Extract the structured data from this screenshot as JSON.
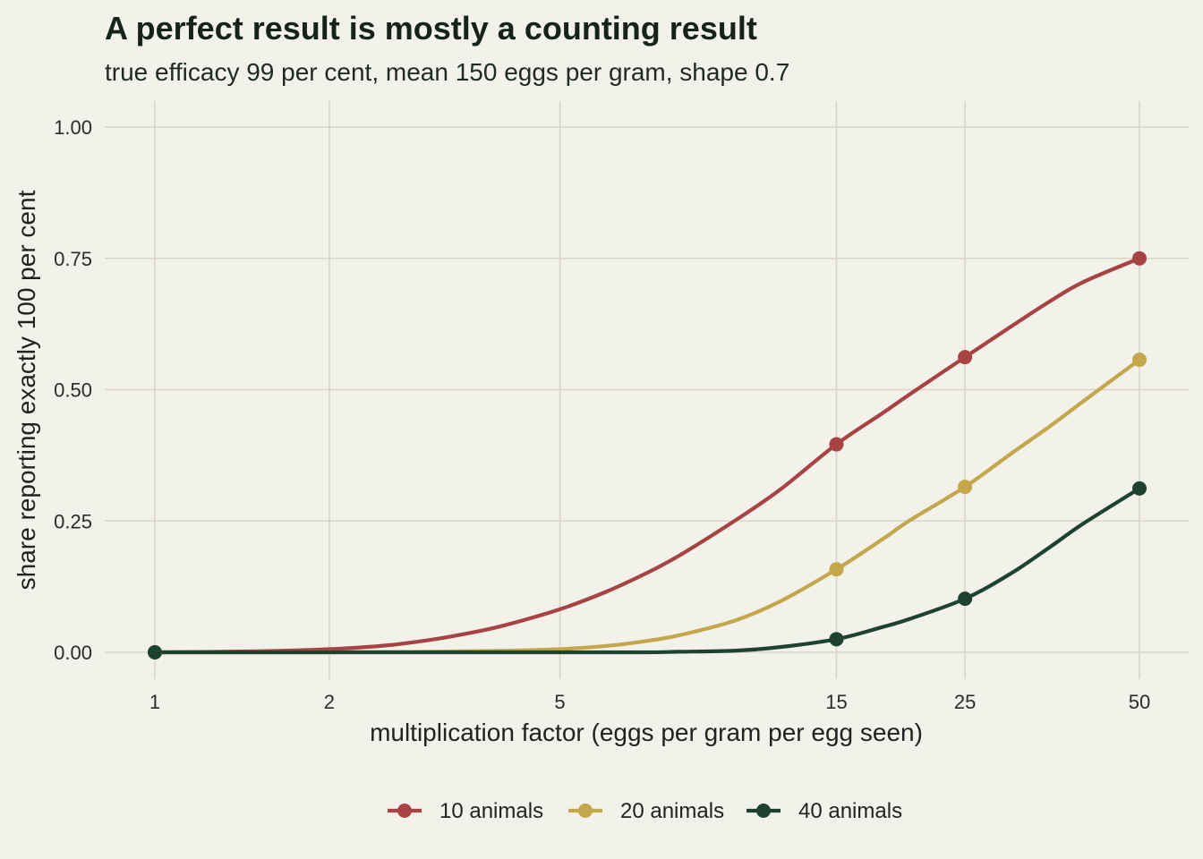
{
  "chart_data": {
    "type": "line",
    "title": "A perfect result is mostly a counting result",
    "subtitle": "true efficacy 99 per cent, mean 150 eggs per gram, shape 0.7",
    "xlabel": "multiplication factor (eggs per gram per egg seen)",
    "ylabel": "share reporting exactly 100 per cent",
    "x_scale": "log",
    "xlim": [
      0.85,
      60
    ],
    "ylim": [
      -0.05,
      1.05
    ],
    "x_ticks": [
      1,
      2,
      5,
      15,
      25,
      50
    ],
    "x_tick_labels": [
      "1",
      "2",
      "5",
      "15",
      "25",
      "50"
    ],
    "y_ticks": [
      0,
      0.25,
      0.5,
      0.75,
      1.0
    ],
    "y_tick_labels": [
      "0.00",
      "0.25",
      "0.50",
      "0.75",
      "1.00"
    ],
    "grid": true,
    "legend_position": "bottom",
    "series": [
      {
        "name": "10 animals",
        "color": "#a84343",
        "curve": {
          "x": [
            1,
            1.5,
            2,
            2.5,
            3,
            3.5,
            4,
            5,
            6,
            7,
            8,
            10,
            12,
            15,
            18,
            20,
            25,
            30,
            35,
            40,
            50
          ],
          "y": [
            0,
            0.002,
            0.006,
            0.013,
            0.024,
            0.037,
            0.051,
            0.082,
            0.115,
            0.149,
            0.183,
            0.25,
            0.31,
            0.396,
            0.455,
            0.49,
            0.562,
            0.62,
            0.668,
            0.705,
            0.75
          ]
        },
        "points": {
          "x": [
            1,
            15,
            25,
            50
          ],
          "y": [
            0,
            0.396,
            0.562,
            0.75
          ]
        }
      },
      {
        "name": "20 animals",
        "color": "#c4a74a",
        "curve": {
          "x": [
            1,
            2,
            3,
            4,
            5,
            6,
            7,
            8,
            10,
            12,
            15,
            18,
            20,
            25,
            30,
            35,
            40,
            50
          ],
          "y": [
            0,
            0,
            0.001,
            0.003,
            0.006,
            0.012,
            0.021,
            0.032,
            0.06,
            0.097,
            0.158,
            0.215,
            0.25,
            0.315,
            0.378,
            0.43,
            0.478,
            0.557
          ]
        },
        "points": {
          "x": [
            1,
            15,
            25,
            50
          ],
          "y": [
            0,
            0.158,
            0.315,
            0.557
          ]
        }
      },
      {
        "name": "40 animals",
        "color": "#1e4230",
        "curve": {
          "x": [
            1,
            5,
            7,
            8,
            10,
            12,
            15,
            18,
            20,
            25,
            30,
            35,
            40,
            50
          ],
          "y": [
            0,
            0,
            0,
            0.001,
            0.003,
            0.01,
            0.025,
            0.048,
            0.063,
            0.102,
            0.15,
            0.2,
            0.245,
            0.312
          ]
        },
        "points": {
          "x": [
            1,
            15,
            25,
            50
          ],
          "y": [
            0,
            0.025,
            0.102,
            0.312
          ]
        }
      }
    ]
  }
}
